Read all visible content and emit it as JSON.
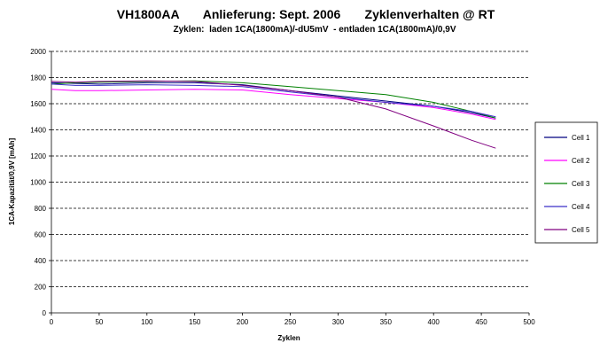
{
  "chart_data": {
    "type": "line",
    "title": "VH1800AA       Anlieferung: Sept. 2006       Zyklenverhalten @ RT",
    "subtitle": "Zyklen:  laden 1CA(1800mA)/-dU5mV  - entladen 1CA(1800mA)/0,9V",
    "xlabel": "Zyklen",
    "ylabel": "1CA-Kapazität/0,9V [mAh]",
    "xlim": [
      0,
      500
    ],
    "ylim": [
      0,
      2000
    ],
    "xticks": [
      0,
      50,
      100,
      150,
      200,
      250,
      300,
      350,
      400,
      450,
      500
    ],
    "yticks": [
      0,
      200,
      400,
      600,
      800,
      1000,
      1200,
      1400,
      1600,
      1800,
      2000
    ],
    "grid": "horizontal dashed",
    "legend_position": "right",
    "series": [
      {
        "name": "Cell 1",
        "color": "#000080",
        "x": [
          0,
          25,
          50,
          100,
          150,
          200,
          250,
          300,
          350,
          400,
          440,
          465
        ],
        "y": [
          1760,
          1755,
          1750,
          1760,
          1760,
          1745,
          1700,
          1660,
          1620,
          1580,
          1530,
          1490
        ]
      },
      {
        "name": "Cell 2",
        "color": "#ff00ff",
        "x": [
          0,
          25,
          50,
          100,
          150,
          200,
          250,
          300,
          350,
          400,
          440,
          465
        ],
        "y": [
          1710,
          1700,
          1700,
          1705,
          1710,
          1705,
          1670,
          1640,
          1610,
          1570,
          1520,
          1480
        ]
      },
      {
        "name": "Cell 3",
        "color": "#008000",
        "x": [
          0,
          25,
          50,
          100,
          150,
          200,
          250,
          300,
          350,
          400,
          440,
          465
        ],
        "y": [
          1750,
          1760,
          1765,
          1770,
          1775,
          1760,
          1730,
          1700,
          1670,
          1610,
          1540,
          1490
        ]
      },
      {
        "name": "Cell 4",
        "color": "#3b2fc8",
        "x": [
          0,
          25,
          50,
          100,
          150,
          200,
          250,
          300,
          350,
          400,
          440,
          465
        ],
        "y": [
          1750,
          1740,
          1740,
          1745,
          1740,
          1730,
          1690,
          1650,
          1610,
          1580,
          1540,
          1500
        ]
      },
      {
        "name": "Cell 5",
        "color": "#800080",
        "x": [
          0,
          25,
          50,
          100,
          150,
          200,
          250,
          300,
          350,
          400,
          440,
          465
        ],
        "y": [
          1770,
          1765,
          1770,
          1775,
          1770,
          1740,
          1700,
          1650,
          1560,
          1430,
          1320,
          1260
        ]
      }
    ]
  }
}
